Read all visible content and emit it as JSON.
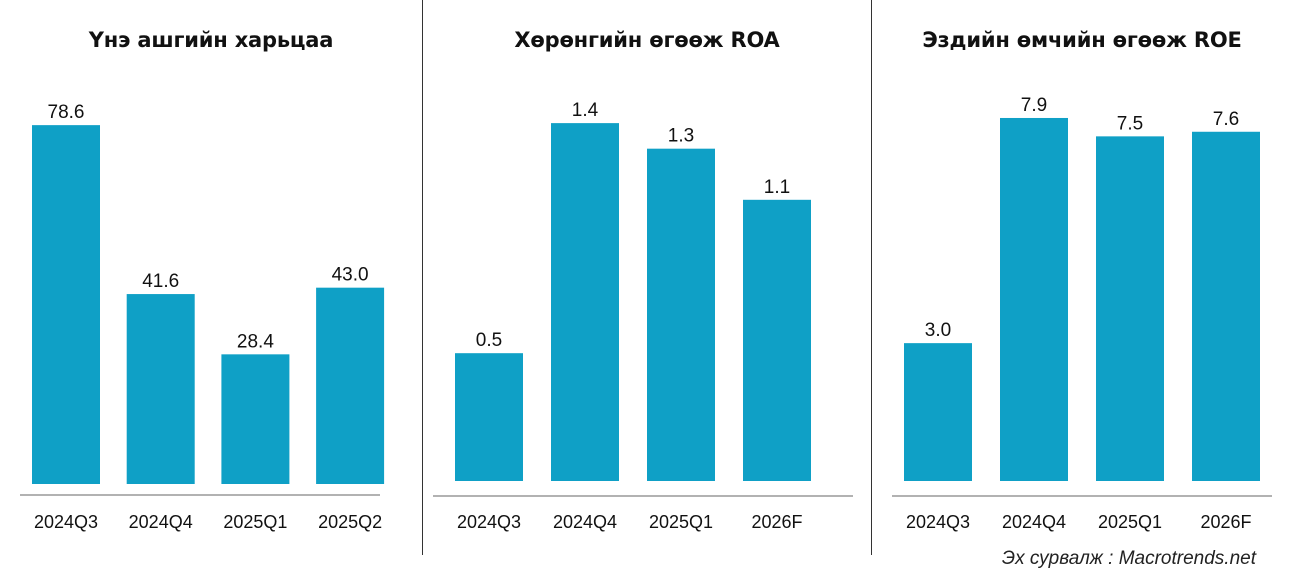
{
  "colors": {
    "bar": "#0fa0c6",
    "axis": "#666666",
    "text": "#111111"
  },
  "chart_data": [
    {
      "type": "bar",
      "title": "Үнэ ашгийн харьцаа",
      "categories": [
        "2024Q3",
        "2024Q4",
        "2025Q1",
        "2025Q2"
      ],
      "values": [
        78.6,
        41.6,
        28.4,
        43.0
      ],
      "value_labels": [
        "78.6",
        "41.6",
        "28.4",
        "43.0"
      ],
      "ylim": [
        0,
        85.2
      ],
      "grid": false,
      "legend": "none"
    },
    {
      "type": "bar",
      "title": "Хөрөнгийн өгөөж ROA",
      "categories": [
        "2024Q3",
        "2024Q4",
        "2025Q1",
        "2026F"
      ],
      "values": [
        0.5,
        1.4,
        1.3,
        1.1
      ],
      "value_labels": [
        "0.5",
        "1.4",
        "1.3",
        "1.1"
      ],
      "ylim": [
        0,
        1.51
      ],
      "grid": false,
      "legend": "none"
    },
    {
      "type": "bar",
      "title": "Эздийн өмчийн өгөөж ROE",
      "categories": [
        "2024Q3",
        "2024Q4",
        "2025Q1",
        "2026F"
      ],
      "values": [
        3.0,
        7.9,
        7.5,
        7.6
      ],
      "value_labels": [
        "3.0",
        "7.9",
        "7.5",
        "7.6"
      ],
      "ylim": [
        0,
        8.4
      ],
      "grid": false,
      "legend": "none"
    }
  ],
  "source_note": "Эх сурвалж : Macrotrends.net"
}
